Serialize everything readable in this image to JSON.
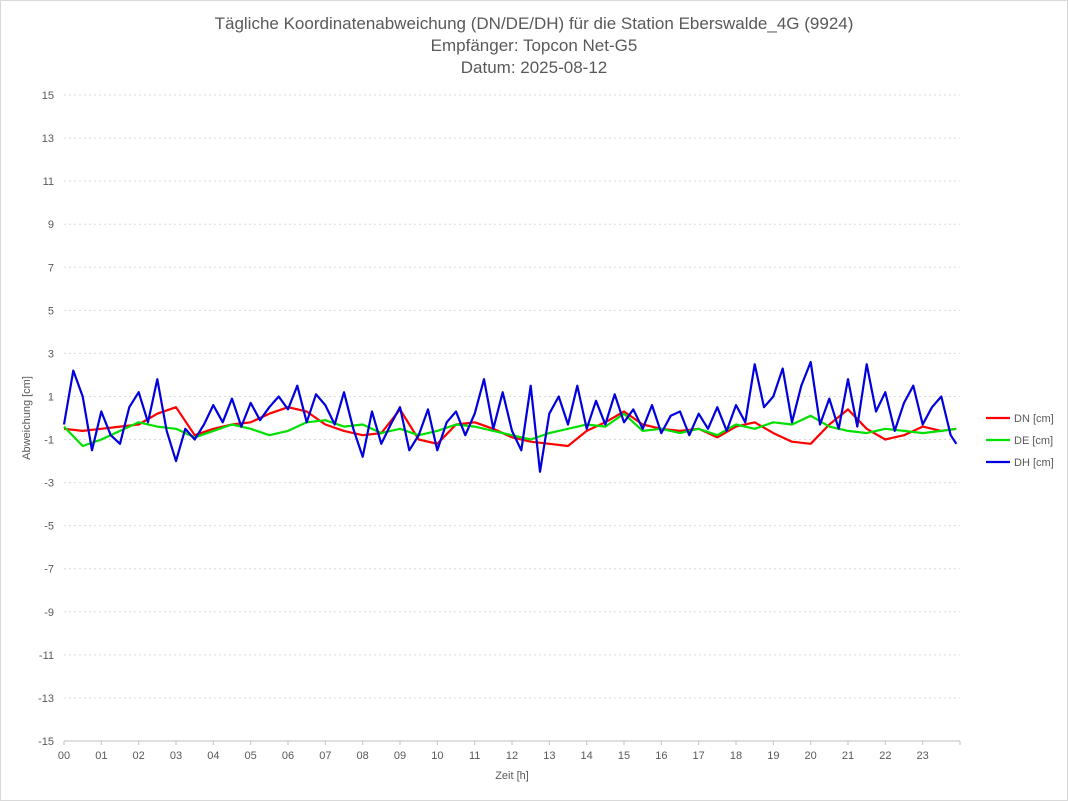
{
  "chart_data": {
    "type": "line",
    "title": "Tägliche Koordinatenabweichung (DN/DE/DH) für die Station Eberswalde_4G (9924)",
    "subtitle_receiver": "Empfänger: Topcon Net-G5",
    "subtitle_date": "Datum: 2025-08-12",
    "xlabel": "Zeit [h]",
    "ylabel": "Abweichung [cm]",
    "xlim": [
      0,
      24
    ],
    "ylim": [
      -15,
      15
    ],
    "x_ticks": [
      "00",
      "01",
      "02",
      "03",
      "04",
      "05",
      "06",
      "07",
      "08",
      "09",
      "10",
      "11",
      "12",
      "13",
      "14",
      "15",
      "16",
      "17",
      "18",
      "19",
      "20",
      "21",
      "22",
      "23"
    ],
    "y_ticks": [
      15,
      13,
      11,
      9,
      7,
      5,
      3,
      1,
      -1,
      -3,
      -5,
      -7,
      -9,
      -11,
      -13,
      -15
    ],
    "legend_position": "right",
    "series": [
      {
        "name": "DN [cm]",
        "color": "#ff0000",
        "x": [
          0,
          0.5,
          1,
          1.5,
          2,
          2.5,
          3,
          3.5,
          4,
          4.5,
          5,
          5.5,
          6,
          6.5,
          7,
          7.5,
          8,
          8.5,
          9,
          9.5,
          10,
          10.5,
          11,
          11.5,
          12,
          12.5,
          13,
          13.5,
          14,
          14.5,
          15,
          15.5,
          16,
          16.5,
          17,
          17.5,
          18,
          18.5,
          19,
          19.5,
          20,
          20.5,
          21,
          21.5,
          22,
          22.5,
          23,
          23.5,
          23.9
        ],
        "values": [
          -0.5,
          -0.6,
          -0.5,
          -0.4,
          -0.3,
          0.2,
          0.5,
          -0.8,
          -0.5,
          -0.3,
          -0.2,
          0.2,
          0.5,
          0.3,
          -0.3,
          -0.6,
          -0.8,
          -0.7,
          0.4,
          -1.0,
          -1.2,
          -0.3,
          -0.2,
          -0.5,
          -0.9,
          -1.1,
          -1.2,
          -1.3,
          -0.6,
          -0.2,
          0.3,
          -0.3,
          -0.5,
          -0.6,
          -0.5,
          -0.9,
          -0.4,
          -0.2,
          -0.7,
          -1.1,
          -1.2,
          -0.3,
          0.4,
          -0.5,
          -1.0,
          -0.8,
          -0.4,
          -0.6,
          -0.5
        ]
      },
      {
        "name": "DE [cm]",
        "color": "#00e000",
        "x": [
          0,
          0.5,
          1,
          1.5,
          2,
          2.5,
          3,
          3.5,
          4,
          4.5,
          5,
          5.5,
          6,
          6.5,
          7,
          7.5,
          8,
          8.5,
          9,
          9.5,
          10,
          10.5,
          11,
          11.5,
          12,
          12.5,
          13,
          13.5,
          14,
          14.5,
          15,
          15.5,
          16,
          16.5,
          17,
          17.5,
          18,
          18.5,
          19,
          19.5,
          20,
          20.5,
          21,
          21.5,
          22,
          22.5,
          23,
          23.5,
          23.9
        ],
        "values": [
          -0.4,
          -1.3,
          -1.0,
          -0.6,
          -0.2,
          -0.4,
          -0.5,
          -0.9,
          -0.6,
          -0.3,
          -0.5,
          -0.8,
          -0.6,
          -0.2,
          -0.1,
          -0.4,
          -0.3,
          -0.7,
          -0.5,
          -0.8,
          -0.6,
          -0.3,
          -0.4,
          -0.6,
          -0.8,
          -1.0,
          -0.7,
          -0.5,
          -0.3,
          -0.4,
          0.2,
          -0.6,
          -0.5,
          -0.7,
          -0.5,
          -0.8,
          -0.3,
          -0.5,
          -0.2,
          -0.3,
          0.1,
          -0.4,
          -0.6,
          -0.7,
          -0.5,
          -0.6,
          -0.7,
          -0.6,
          -0.5
        ]
      },
      {
        "name": "DH [cm]",
        "color": "#0000dd",
        "x": [
          0,
          0.25,
          0.5,
          0.75,
          1,
          1.25,
          1.5,
          1.75,
          2,
          2.25,
          2.5,
          2.75,
          3,
          3.25,
          3.5,
          3.75,
          4,
          4.25,
          4.5,
          4.75,
          5,
          5.25,
          5.5,
          5.75,
          6,
          6.25,
          6.5,
          6.75,
          7,
          7.25,
          7.5,
          7.75,
          8,
          8.25,
          8.5,
          8.75,
          9,
          9.25,
          9.5,
          9.75,
          10,
          10.25,
          10.5,
          10.75,
          11,
          11.25,
          11.5,
          11.75,
          12,
          12.25,
          12.5,
          12.75,
          13,
          13.25,
          13.5,
          13.75,
          14,
          14.25,
          14.5,
          14.75,
          15,
          15.25,
          15.5,
          15.75,
          16,
          16.25,
          16.5,
          16.75,
          17,
          17.25,
          17.5,
          17.75,
          18,
          18.25,
          18.5,
          18.75,
          19,
          19.25,
          19.5,
          19.75,
          20,
          20.25,
          20.5,
          20.75,
          21,
          21.25,
          21.5,
          21.75,
          22,
          22.25,
          22.5,
          22.75,
          23,
          23.25,
          23.5,
          23.75,
          23.9
        ],
        "values": [
          -0.3,
          2.2,
          1.0,
          -1.5,
          0.3,
          -0.8,
          -1.2,
          0.5,
          1.2,
          -0.2,
          1.8,
          -0.6,
          -2.0,
          -0.5,
          -1.0,
          -0.3,
          0.6,
          -0.2,
          0.9,
          -0.4,
          0.7,
          -0.1,
          0.5,
          1.0,
          0.4,
          1.5,
          -0.2,
          1.1,
          0.6,
          -0.3,
          1.2,
          -0.5,
          -1.8,
          0.3,
          -1.2,
          -0.3,
          0.5,
          -1.5,
          -0.8,
          0.4,
          -1.5,
          -0.2,
          0.3,
          -0.8,
          0.2,
          1.8,
          -0.5,
          1.2,
          -0.6,
          -1.5,
          1.5,
          -2.5,
          0.2,
          1.0,
          -0.3,
          1.5,
          -0.5,
          0.8,
          -0.3,
          1.1,
          -0.2,
          0.4,
          -0.5,
          0.6,
          -0.7,
          0.1,
          0.3,
          -0.8,
          0.2,
          -0.5,
          0.5,
          -0.6,
          0.6,
          -0.2,
          2.5,
          0.5,
          1.0,
          2.3,
          -0.2,
          1.5,
          2.6,
          -0.3,
          0.9,
          -0.5,
          1.8,
          -0.4,
          2.5,
          0.3,
          1.2,
          -0.6,
          0.7,
          1.5,
          -0.3,
          0.5,
          1.0,
          -0.8,
          -1.2
        ]
      }
    ]
  }
}
